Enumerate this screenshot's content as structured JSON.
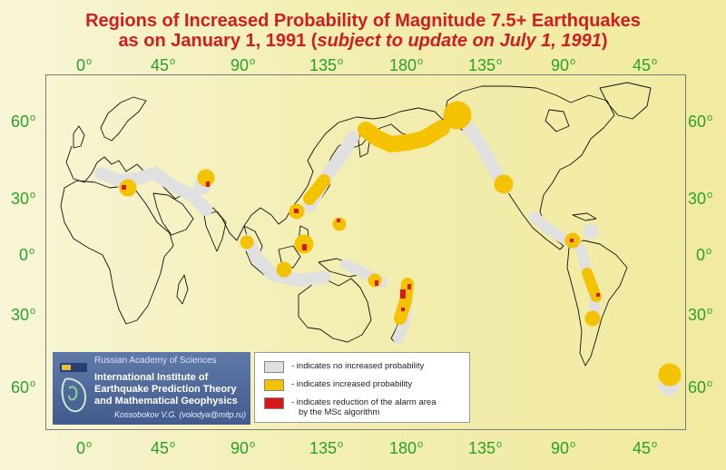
{
  "title": {
    "line1": "Regions of Increased Probability of Magnitude 7.5+ Earthquakes",
    "line2_prefix": "as on January 1, 1991 (",
    "line2_italic": "subject to update on July 1, 1991",
    "line2_suffix": ")"
  },
  "axes": {
    "longitude_labels": [
      "0",
      "45",
      "90",
      "135",
      "180",
      "135",
      "90",
      "45"
    ],
    "latitude_labels": [
      "60",
      "30",
      "0",
      "30",
      "60"
    ],
    "degree_symbol": "o"
  },
  "logo": {
    "academy": "Russian Academy of Sciences",
    "institute_line1": "International Institute of",
    "institute_line2": "Earthquake Prediction Theory",
    "institute_line3": "and Mathematical Geophysics",
    "author": "Kossobokov V.G. (volodya@mitp.ru)"
  },
  "legend": {
    "items": [
      {
        "label": "- indicates no increased probability",
        "color": "#e0e0e0"
      },
      {
        "label": "- indicates increased probability",
        "color": "#f5c200"
      },
      {
        "label": "- indicates reduction of the alarm area",
        "label2": "by the MSc algorithm",
        "color": "#d81818"
      }
    ]
  },
  "colors": {
    "title": "#d11d1d",
    "axis_labels": "#2aa12a",
    "no_increase": "#e0e0e0",
    "increase": "#f5c200",
    "reduction": "#d81818",
    "background": "#f3eeb2"
  }
}
